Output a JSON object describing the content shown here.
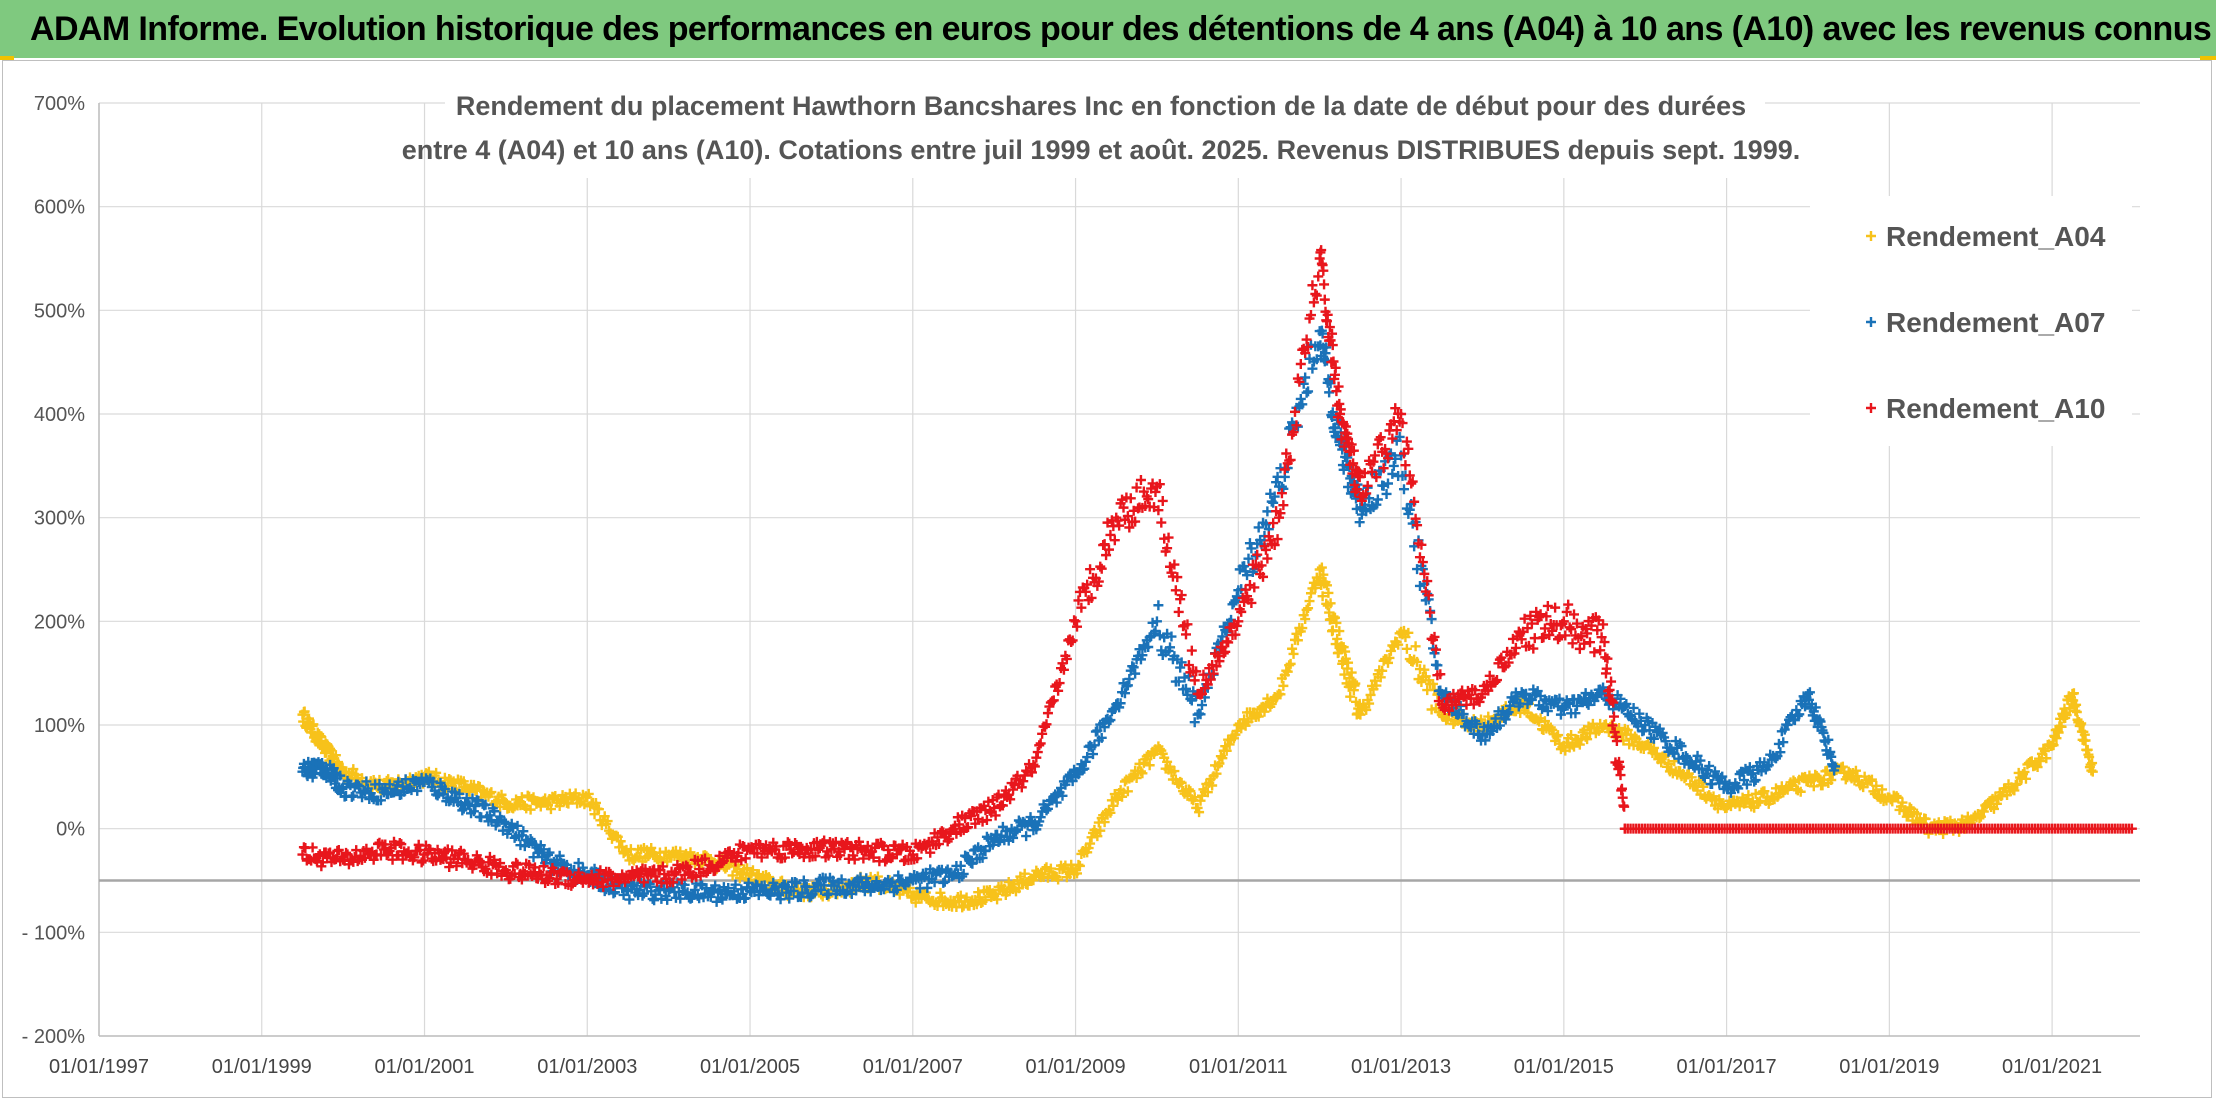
{
  "banner": {
    "title": "ADAM Informe. Evolution historique des performances en euros pour des détentions de 4 ans (A04) à 10 ans (A10) avec les revenus connus distribués"
  },
  "colors": {
    "banner_bg": "#7fc97f",
    "accent_corner": "#f2c200",
    "A04": "#f7c21b",
    "A07": "#1a72b8",
    "A10": "#e8161c",
    "grid": "#d9d9d9"
  },
  "chart_data": {
    "type": "scatter",
    "marker": "plus",
    "title_lines": [
      "Rendement du placement Hawthorn Bancshares Inc en fonction de la date de début pour des durées",
      "entre 4 (A04) et 10 ans (A10). Cotations entre juil 1999 et août. 2025. Revenus DISTRIBUES depuis sept. 1999."
    ],
    "xlabel": "",
    "ylabel": "",
    "x_tick_labels": [
      "01/01/1997",
      "01/01/1999",
      "01/01/2001",
      "01/01/2003",
      "01/01/2005",
      "01/01/2007",
      "01/01/2009",
      "01/01/2011",
      "01/01/2013",
      "01/01/2015",
      "01/01/2017",
      "01/01/2019",
      "01/01/2021"
    ],
    "x_tick_years": [
      1997,
      1999,
      2001,
      2003,
      2005,
      2007,
      2009,
      2011,
      2013,
      2015,
      2017,
      2019,
      2021
    ],
    "xlim": [
      "01/01/1997",
      "01/02/2022"
    ],
    "y_tick_labels": [
      "700%",
      "600%",
      "500%",
      "400%",
      "300%",
      "200%",
      "100%",
      "0%",
      "- 100%",
      "- 200%"
    ],
    "y_tick_values": [
      700,
      600,
      500,
      400,
      300,
      200,
      100,
      0,
      -100,
      -200
    ],
    "ylim": [
      -200,
      700
    ],
    "reference_line_y": -50,
    "grid": true,
    "legend_position": "top-right",
    "series": [
      {
        "name": "Rendement_A04",
        "color": "#f7c21b",
        "x": [
          "1999-07",
          "1999-10",
          "2000-01",
          "2000-07",
          "2001-01",
          "2001-07",
          "2002-01",
          "2002-07",
          "2003-01",
          "2003-07",
          "2004-01",
          "2004-07",
          "2005-01",
          "2005-07",
          "2006-01",
          "2006-07",
          "2007-01",
          "2007-07",
          "2008-01",
          "2008-07",
          "2009-01",
          "2009-07",
          "2010-01",
          "2010-07",
          "2011-01",
          "2011-07",
          "2012-01",
          "2012-04",
          "2012-07",
          "2013-01",
          "2013-07",
          "2014-01",
          "2014-07",
          "2015-01",
          "2015-07",
          "2016-01",
          "2016-07",
          "2017-01",
          "2017-07",
          "2018-01",
          "2018-07",
          "2019-01",
          "2019-07",
          "2020-01",
          "2020-07",
          "2021-01",
          "2021-04",
          "2021-07"
        ],
        "y": [
          110,
          80,
          55,
          40,
          50,
          40,
          25,
          25,
          30,
          -25,
          -25,
          -30,
          -45,
          -60,
          -60,
          -50,
          -65,
          -70,
          -65,
          -45,
          -40,
          30,
          75,
          20,
          100,
          130,
          250,
          175,
          110,
          190,
          110,
          100,
          120,
          80,
          100,
          80,
          50,
          20,
          30,
          45,
          55,
          30,
          0,
          5,
          40,
          80,
          130,
          55
        ]
      },
      {
        "name": "Rendement_A07",
        "color": "#1a72b8",
        "x": [
          "1999-07",
          "1999-10",
          "2000-01",
          "2000-07",
          "2001-01",
          "2001-07",
          "2002-01",
          "2002-07",
          "2003-01",
          "2003-07",
          "2004-01",
          "2004-07",
          "2005-01",
          "2005-07",
          "2006-01",
          "2006-07",
          "2007-01",
          "2007-07",
          "2008-01",
          "2008-07",
          "2009-01",
          "2009-07",
          "2010-01",
          "2010-07",
          "2011-01",
          "2011-07",
          "2012-01",
          "2012-04",
          "2012-07",
          "2013-01",
          "2013-07",
          "2014-01",
          "2014-07",
          "2015-01",
          "2015-07",
          "2016-01",
          "2016-07",
          "2017-01",
          "2017-07",
          "2018-01",
          "2018-05"
        ],
        "y": [
          55,
          60,
          40,
          35,
          45,
          25,
          5,
          -30,
          -45,
          -60,
          -60,
          -62,
          -60,
          -60,
          -55,
          -55,
          -50,
          -45,
          -10,
          5,
          50,
          120,
          200,
          110,
          230,
          330,
          480,
          370,
          310,
          360,
          130,
          90,
          130,
          115,
          130,
          100,
          70,
          40,
          60,
          130,
          60
        ]
      },
      {
        "name": "Rendement_A10",
        "color": "#e8161c",
        "x": [
          "1999-07",
          "2000-01",
          "2000-07",
          "2001-01",
          "2001-07",
          "2002-01",
          "2002-07",
          "2003-01",
          "2003-07",
          "2004-01",
          "2004-07",
          "2005-01",
          "2005-07",
          "2006-01",
          "2006-07",
          "2007-01",
          "2007-07",
          "2008-01",
          "2008-07",
          "2009-01",
          "2009-07",
          "2010-01",
          "2010-07",
          "2011-01",
          "2011-07",
          "2012-01",
          "2012-04",
          "2012-07",
          "2013-01",
          "2013-07",
          "2014-01",
          "2014-07",
          "2015-01",
          "2015-07",
          "2015-10"
        ],
        "y": [
          -25,
          -30,
          -20,
          -25,
          -30,
          -40,
          -45,
          -48,
          -48,
          -45,
          -35,
          -20,
          -20,
          -20,
          -22,
          -25,
          0,
          20,
          60,
          200,
          300,
          330,
          130,
          200,
          300,
          550,
          400,
          320,
          400,
          120,
          130,
          190,
          200,
          180,
          0
        ]
      }
    ],
    "zero_segment": {
      "series": "Rendement_A10",
      "from": "2015-10",
      "to": "2022-01",
      "y": 0
    }
  }
}
